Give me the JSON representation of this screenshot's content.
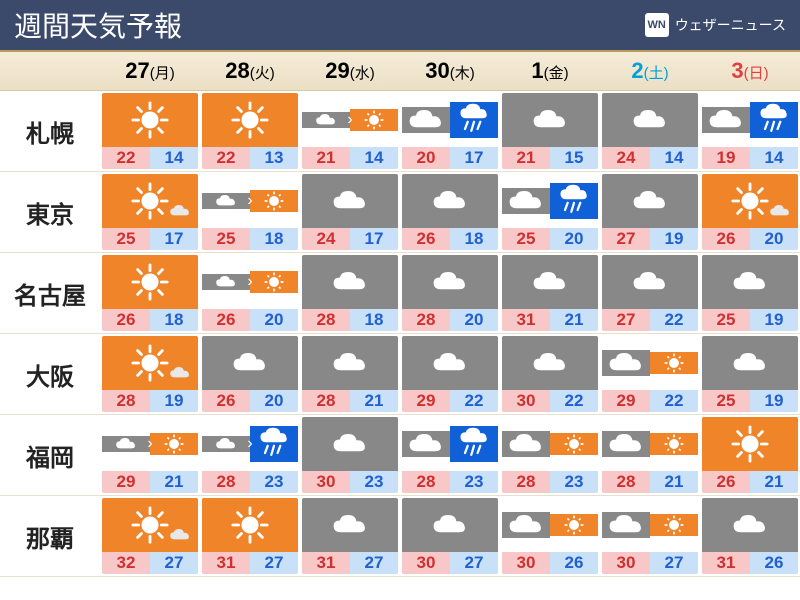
{
  "header": {
    "title": "週間天気予報",
    "logo_badge": "WN",
    "logo_text": "ウェザーニュース"
  },
  "colors": {
    "sunny_bg": "#f08428",
    "cloudy_bg": "#888888",
    "rain_bg": "#1060d8",
    "hi_bg": "#f8c8c8",
    "hi_fg": "#d03030",
    "lo_bg": "#c8e0f8",
    "lo_fg": "#2060d0",
    "header_bg": "#3b4a6b",
    "sat": "#00a0d8",
    "sun": "#e04040",
    "date_strip": "#f0e6cc"
  },
  "days": [
    {
      "num": "27",
      "dow": "(月)",
      "cls": ""
    },
    {
      "num": "28",
      "dow": "(火)",
      "cls": ""
    },
    {
      "num": "29",
      "dow": "(水)",
      "cls": ""
    },
    {
      "num": "30",
      "dow": "(木)",
      "cls": ""
    },
    {
      "num": "1",
      "dow": "(金)",
      "cls": ""
    },
    {
      "num": "2",
      "dow": "(土)",
      "cls": "sat"
    },
    {
      "num": "3",
      "dow": "(日)",
      "cls": "sun"
    }
  ],
  "cities": [
    {
      "name": "札幌",
      "cells": [
        {
          "w": "sunny",
          "hi": "22",
          "lo": "14"
        },
        {
          "w": "sunny",
          "hi": "22",
          "lo": "13"
        },
        {
          "w": "cloudy_then_sunny",
          "hi": "21",
          "lo": "14"
        },
        {
          "w": "cloudy_rain",
          "hi": "20",
          "lo": "17"
        },
        {
          "w": "cloudy",
          "hi": "21",
          "lo": "15"
        },
        {
          "w": "cloudy",
          "hi": "24",
          "lo": "14"
        },
        {
          "w": "cloudy_rain",
          "hi": "19",
          "lo": "14"
        }
      ]
    },
    {
      "name": "東京",
      "cells": [
        {
          "w": "sunny_cloud",
          "hi": "25",
          "lo": "17"
        },
        {
          "w": "cloudy_then_sunny",
          "hi": "25",
          "lo": "18"
        },
        {
          "w": "cloudy",
          "hi": "24",
          "lo": "17"
        },
        {
          "w": "cloudy",
          "hi": "26",
          "lo": "18"
        },
        {
          "w": "cloudy_rain",
          "hi": "25",
          "lo": "20"
        },
        {
          "w": "cloudy",
          "hi": "27",
          "lo": "19"
        },
        {
          "w": "sunny_cloud",
          "hi": "26",
          "lo": "20"
        }
      ]
    },
    {
      "name": "名古屋",
      "cells": [
        {
          "w": "sunny",
          "hi": "26",
          "lo": "18"
        },
        {
          "w": "cloudy_then_sunny",
          "hi": "26",
          "lo": "20"
        },
        {
          "w": "cloudy",
          "hi": "28",
          "lo": "18"
        },
        {
          "w": "cloudy",
          "hi": "28",
          "lo": "20"
        },
        {
          "w": "cloudy",
          "hi": "31",
          "lo": "21"
        },
        {
          "w": "cloudy",
          "hi": "27",
          "lo": "22"
        },
        {
          "w": "cloudy",
          "hi": "25",
          "lo": "19"
        }
      ]
    },
    {
      "name": "大阪",
      "cells": [
        {
          "w": "sunny_cloud",
          "hi": "28",
          "lo": "19"
        },
        {
          "w": "cloudy",
          "hi": "26",
          "lo": "20"
        },
        {
          "w": "cloudy",
          "hi": "28",
          "lo": "21"
        },
        {
          "w": "cloudy",
          "hi": "29",
          "lo": "22"
        },
        {
          "w": "cloudy",
          "hi": "30",
          "lo": "22"
        },
        {
          "w": "cloudy_sunny",
          "hi": "29",
          "lo": "22"
        },
        {
          "w": "cloudy",
          "hi": "25",
          "lo": "19"
        }
      ]
    },
    {
      "name": "福岡",
      "cells": [
        {
          "w": "cloudy_then_sunny",
          "hi": "29",
          "lo": "21"
        },
        {
          "w": "cloudy_then_rain",
          "hi": "28",
          "lo": "23"
        },
        {
          "w": "cloudy",
          "hi": "30",
          "lo": "23"
        },
        {
          "w": "cloudy_rain",
          "hi": "28",
          "lo": "23"
        },
        {
          "w": "cloudy_sunny",
          "hi": "28",
          "lo": "23"
        },
        {
          "w": "cloudy_sunny",
          "hi": "28",
          "lo": "21"
        },
        {
          "w": "sunny",
          "hi": "26",
          "lo": "21"
        }
      ]
    },
    {
      "name": "那覇",
      "cells": [
        {
          "w": "sunny_cloud",
          "hi": "32",
          "lo": "27"
        },
        {
          "w": "sunny",
          "hi": "31",
          "lo": "27"
        },
        {
          "w": "cloudy",
          "hi": "31",
          "lo": "27"
        },
        {
          "w": "cloudy",
          "hi": "30",
          "lo": "27"
        },
        {
          "w": "cloudy_sunny",
          "hi": "30",
          "lo": "26"
        },
        {
          "w": "cloudy_sunny",
          "hi": "30",
          "lo": "27"
        },
        {
          "w": "cloudy",
          "hi": "31",
          "lo": "26"
        }
      ]
    }
  ]
}
